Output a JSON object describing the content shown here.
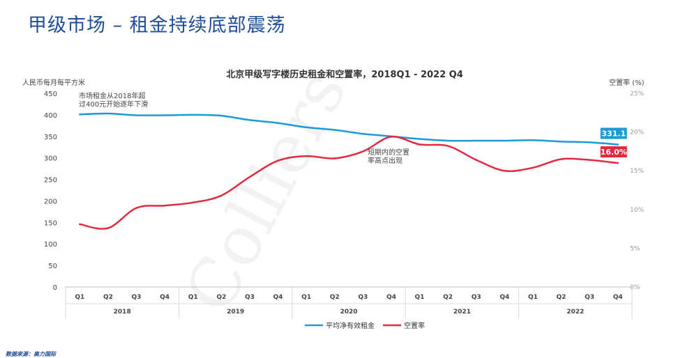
{
  "page": {
    "title": "甲级市场 – 租金持续底部震荡",
    "source": "数据来源：高力国际",
    "watermark": "Colliers"
  },
  "chart_data": {
    "type": "line",
    "title": "北京甲级写字楼历史租金和空置率，2018Q1 - 2022 Q4",
    "ylabel_left": "人民币每月每平方米",
    "ylabel_right": "空置率 (%)",
    "ylim_left": [
      0,
      450
    ],
    "yticks_left": [
      "0",
      "50",
      "100",
      "150",
      "200",
      "250",
      "300",
      "350",
      "400",
      "450"
    ],
    "ylim_right": [
      0,
      25
    ],
    "yticks_right": [
      "0%",
      "5%",
      "10%",
      "15%",
      "20%",
      "25%"
    ],
    "quarters": [
      "Q1",
      "Q2",
      "Q3",
      "Q4",
      "Q1",
      "Q2",
      "Q3",
      "Q4",
      "Q1",
      "Q2",
      "Q3",
      "Q4",
      "Q1",
      "Q2",
      "Q3",
      "Q4",
      "Q1",
      "Q2",
      "Q3",
      "Q4"
    ],
    "years": [
      "2018",
      "2019",
      "2020",
      "2021",
      "2022"
    ],
    "grid": false,
    "legend_position": "bottom",
    "series": [
      {
        "name": "平均净有效租金",
        "axis": "left",
        "color": "#1a9ad6",
        "values": [
          401,
          403,
          399,
          399,
          400,
          398,
          388,
          381,
          371,
          365,
          356,
          350,
          344,
          340,
          340,
          340,
          341,
          338,
          336,
          331.1
        ],
        "end_label": "331.1"
      },
      {
        "name": "空置率",
        "axis": "right",
        "color": "#e4283f",
        "values": [
          8.1,
          7.6,
          10.2,
          10.5,
          10.9,
          11.8,
          14.2,
          16.3,
          16.9,
          16.6,
          17.5,
          19.4,
          18.4,
          18.2,
          16.4,
          15.0,
          15.4,
          16.5,
          16.4,
          16.0
        ],
        "end_label": "16.0%"
      }
    ],
    "annotations": [
      {
        "text_lines": [
          "市场租金从2018年超",
          "过400元开始逐年下滑"
        ]
      },
      {
        "text_lines": [
          "短期内的空置",
          "率高点出现"
        ]
      }
    ]
  }
}
